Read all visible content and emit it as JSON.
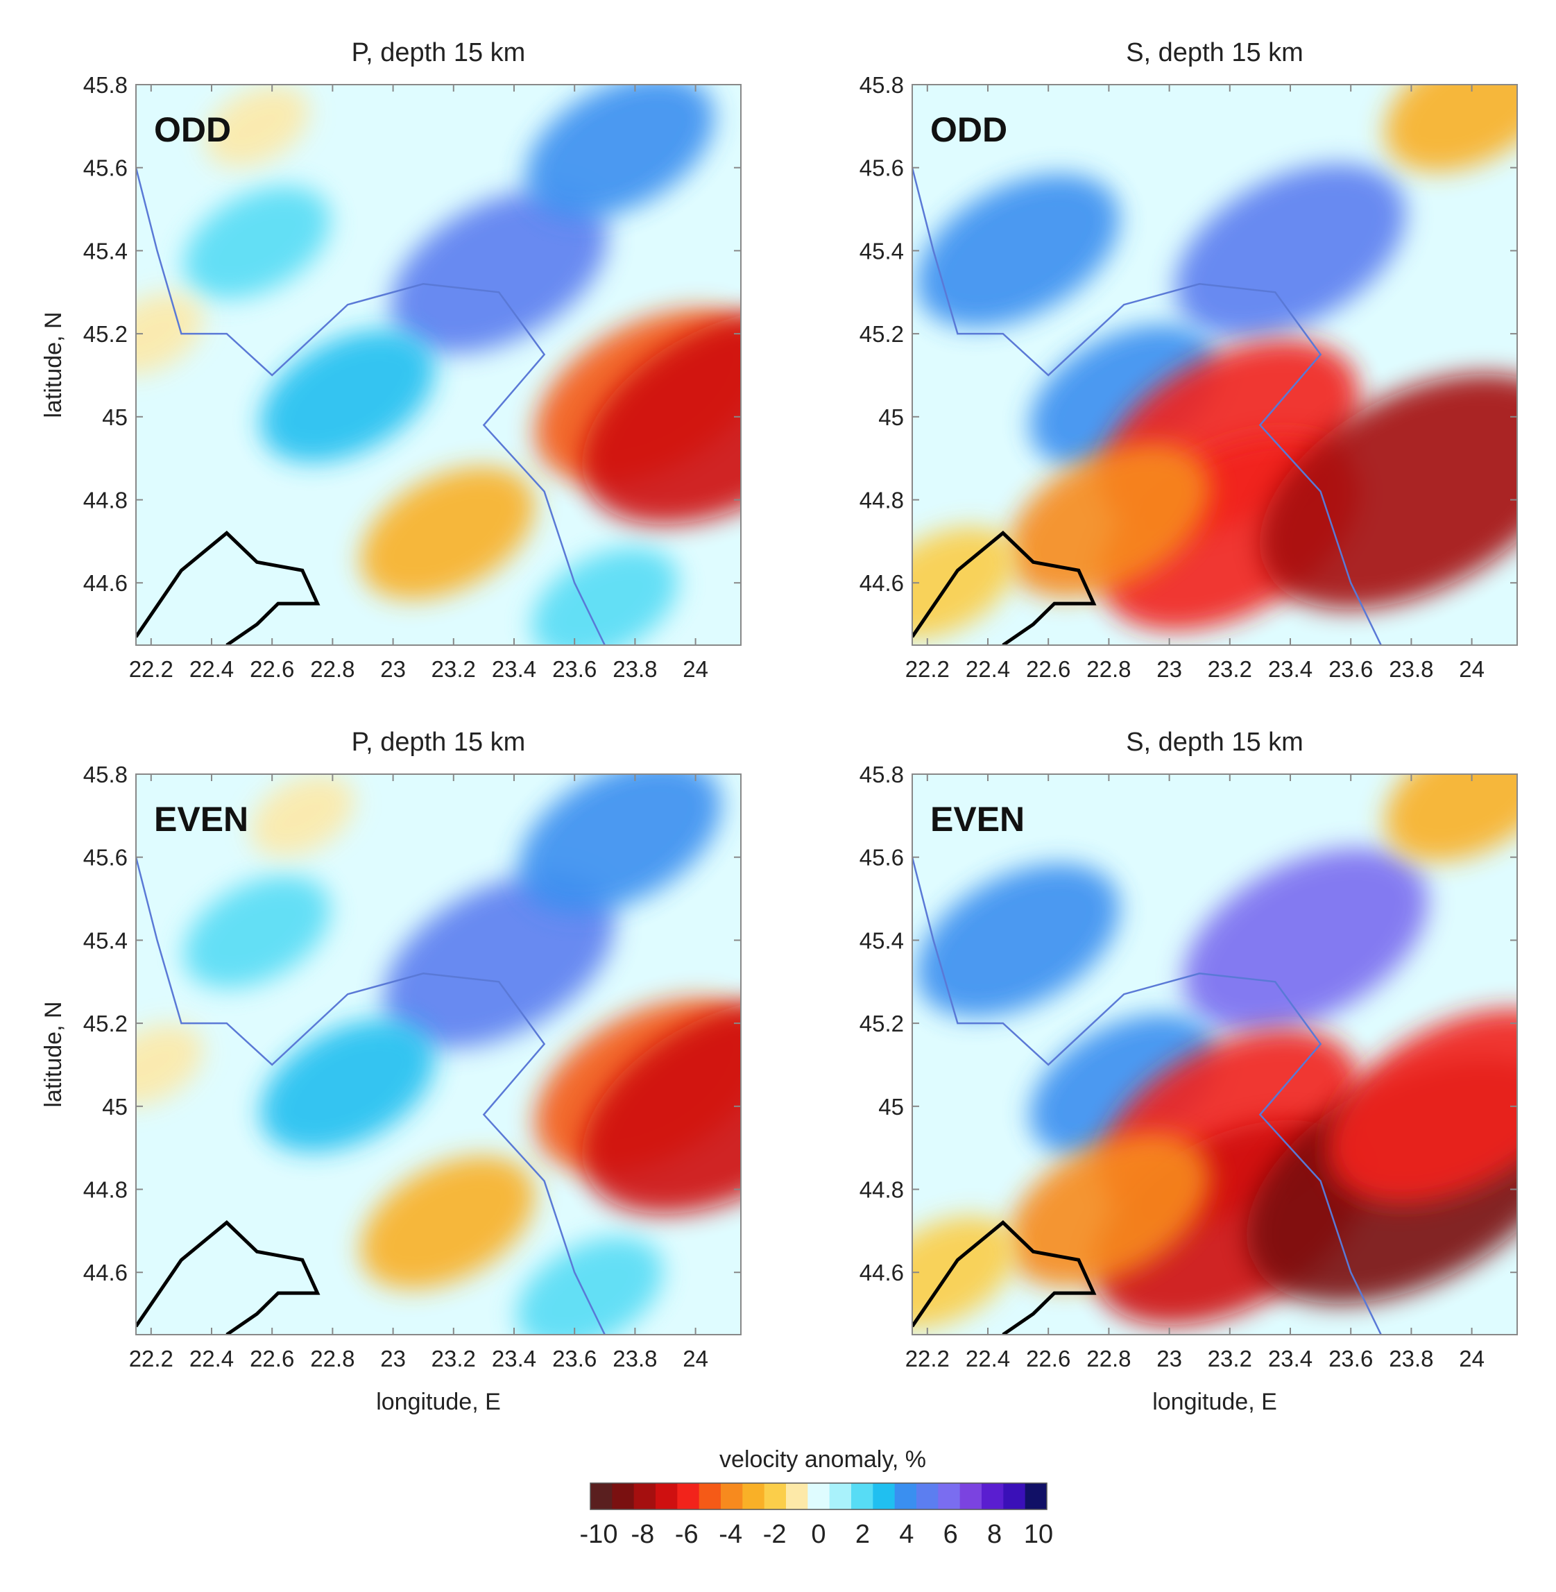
{
  "chart_data": [
    {
      "type": "heatmap",
      "title": "P, depth 15 km",
      "label": "ODD",
      "xlabel": "",
      "ylabel": "latitude, N",
      "xlim": [
        22.15,
        24.15
      ],
      "ylim": [
        44.45,
        45.8
      ],
      "xticks": [
        "22.2",
        "22.4",
        "22.6",
        "22.8",
        "23",
        "23.2",
        "23.4",
        "23.6",
        "23.8",
        "24"
      ],
      "yticks": [
        "45.8",
        "45.6",
        "45.4",
        "45.2",
        "45",
        "44.8",
        "44.6"
      ],
      "anomalies": [
        {
          "lon": 23.35,
          "lat": 45.35,
          "value": 4.5
        },
        {
          "lon": 23.75,
          "lat": 45.65,
          "value": 3.5
        },
        {
          "lon": 22.85,
          "lat": 45.05,
          "value": 3
        },
        {
          "lon": 22.55,
          "lat": 45.42,
          "value": 2
        },
        {
          "lon": 23.7,
          "lat": 44.55,
          "value": 2
        },
        {
          "lon": 23.85,
          "lat": 45.05,
          "value": -5
        },
        {
          "lon": 24.1,
          "lat": 45.0,
          "value": -7
        },
        {
          "lon": 23.18,
          "lat": 44.72,
          "value": -3
        },
        {
          "lon": 22.55,
          "lat": 45.7,
          "value": -0.5
        },
        {
          "lon": 22.2,
          "lat": 45.2,
          "value": -0.5
        }
      ]
    },
    {
      "type": "heatmap",
      "title": "S, depth 15 km",
      "label": "ODD",
      "xlabel": "",
      "ylabel": "",
      "xlim": [
        22.15,
        24.15
      ],
      "ylim": [
        44.45,
        45.8
      ],
      "xticks": [
        "22.2",
        "22.4",
        "22.6",
        "22.8",
        "23",
        "23.2",
        "23.4",
        "23.6",
        "23.8",
        "24"
      ],
      "yticks": [
        "45.8",
        "45.6",
        "45.4",
        "45.2",
        "45",
        "44.8",
        "44.6"
      ],
      "anomalies": [
        {
          "lon": 23.4,
          "lat": 45.4,
          "value": 5
        },
        {
          "lon": 22.5,
          "lat": 45.4,
          "value": 4
        },
        {
          "lon": 22.85,
          "lat": 45.05,
          "value": 3.5
        },
        {
          "lon": 23.2,
          "lat": 44.95,
          "value": -6
        },
        {
          "lon": 23.2,
          "lat": 44.72,
          "value": -6
        },
        {
          "lon": 23.82,
          "lat": 44.82,
          "value": -8
        },
        {
          "lon": 22.8,
          "lat": 44.75,
          "value": -4
        },
        {
          "lon": 24.0,
          "lat": 45.75,
          "value": -3
        },
        {
          "lon": 22.25,
          "lat": 44.6,
          "value": -2
        }
      ]
    },
    {
      "type": "heatmap",
      "title": "P, depth 15 km",
      "label": "EVEN",
      "xlabel": "longitude, E",
      "ylabel": "latitude, N",
      "xlim": [
        22.15,
        24.15
      ],
      "ylim": [
        44.45,
        45.8
      ],
      "xticks": [
        "22.2",
        "22.4",
        "22.6",
        "22.8",
        "23",
        "23.2",
        "23.4",
        "23.6",
        "23.8",
        "24"
      ],
      "yticks": [
        "45.8",
        "45.6",
        "45.4",
        "45.2",
        "45",
        "44.8",
        "44.6"
      ],
      "anomalies": [
        {
          "lon": 23.35,
          "lat": 45.35,
          "value": 5
        },
        {
          "lon": 23.75,
          "lat": 45.65,
          "value": 4
        },
        {
          "lon": 22.85,
          "lat": 45.05,
          "value": 3
        },
        {
          "lon": 22.55,
          "lat": 45.42,
          "value": 2
        },
        {
          "lon": 23.65,
          "lat": 44.55,
          "value": 2
        },
        {
          "lon": 23.85,
          "lat": 45.05,
          "value": -5
        },
        {
          "lon": 24.1,
          "lat": 45.0,
          "value": -7
        },
        {
          "lon": 23.18,
          "lat": 44.72,
          "value": -3
        },
        {
          "lon": 22.7,
          "lat": 45.7,
          "value": -0.5
        },
        {
          "lon": 22.2,
          "lat": 45.1,
          "value": -0.5
        }
      ]
    },
    {
      "type": "heatmap",
      "title": "S, depth 15 km",
      "label": "EVEN",
      "xlabel": "longitude, E",
      "ylabel": "",
      "xlim": [
        22.15,
        24.15
      ],
      "ylim": [
        44.45,
        45.8
      ],
      "xticks": [
        "22.2",
        "22.4",
        "22.6",
        "22.8",
        "23",
        "23.2",
        "23.4",
        "23.6",
        "23.8",
        "24"
      ],
      "yticks": [
        "45.8",
        "45.6",
        "45.4",
        "45.2",
        "45",
        "44.8",
        "44.6"
      ],
      "anomalies": [
        {
          "lon": 23.45,
          "lat": 45.4,
          "value": 5.5
        },
        {
          "lon": 22.5,
          "lat": 45.4,
          "value": 4
        },
        {
          "lon": 22.85,
          "lat": 45.05,
          "value": 3.5
        },
        {
          "lon": 23.2,
          "lat": 44.95,
          "value": -6
        },
        {
          "lon": 23.2,
          "lat": 44.72,
          "value": -6.5
        },
        {
          "lon": 23.8,
          "lat": 44.82,
          "value": -8.5
        },
        {
          "lon": 23.95,
          "lat": 45.0,
          "value": -6
        },
        {
          "lon": 22.8,
          "lat": 44.75,
          "value": -4
        },
        {
          "lon": 24.0,
          "lat": 45.75,
          "value": -3
        },
        {
          "lon": 22.25,
          "lat": 44.6,
          "value": -2
        }
      ]
    }
  ],
  "colorbar": {
    "title": "velocity anomaly, %",
    "range": [
      -10,
      10
    ],
    "tick_labels": [
      "-10",
      "-8",
      "-6",
      "-4",
      "-2",
      "0",
      "2",
      "4",
      "6",
      "8",
      "10"
    ],
    "colors": [
      "#5a1f1f",
      "#7a1010",
      "#a50f0f",
      "#cf1010",
      "#f2231b",
      "#f55a17",
      "#f78a1e",
      "#f9b027",
      "#fbce4a",
      "#fde9a8",
      "#dffcff",
      "#a9f2fb",
      "#57dcf5",
      "#20bff0",
      "#3a8ff0",
      "#5c7ef0",
      "#7a6df0",
      "#7b43e0",
      "#5a1ed0",
      "#3a10b8",
      "#111066"
    ]
  }
}
